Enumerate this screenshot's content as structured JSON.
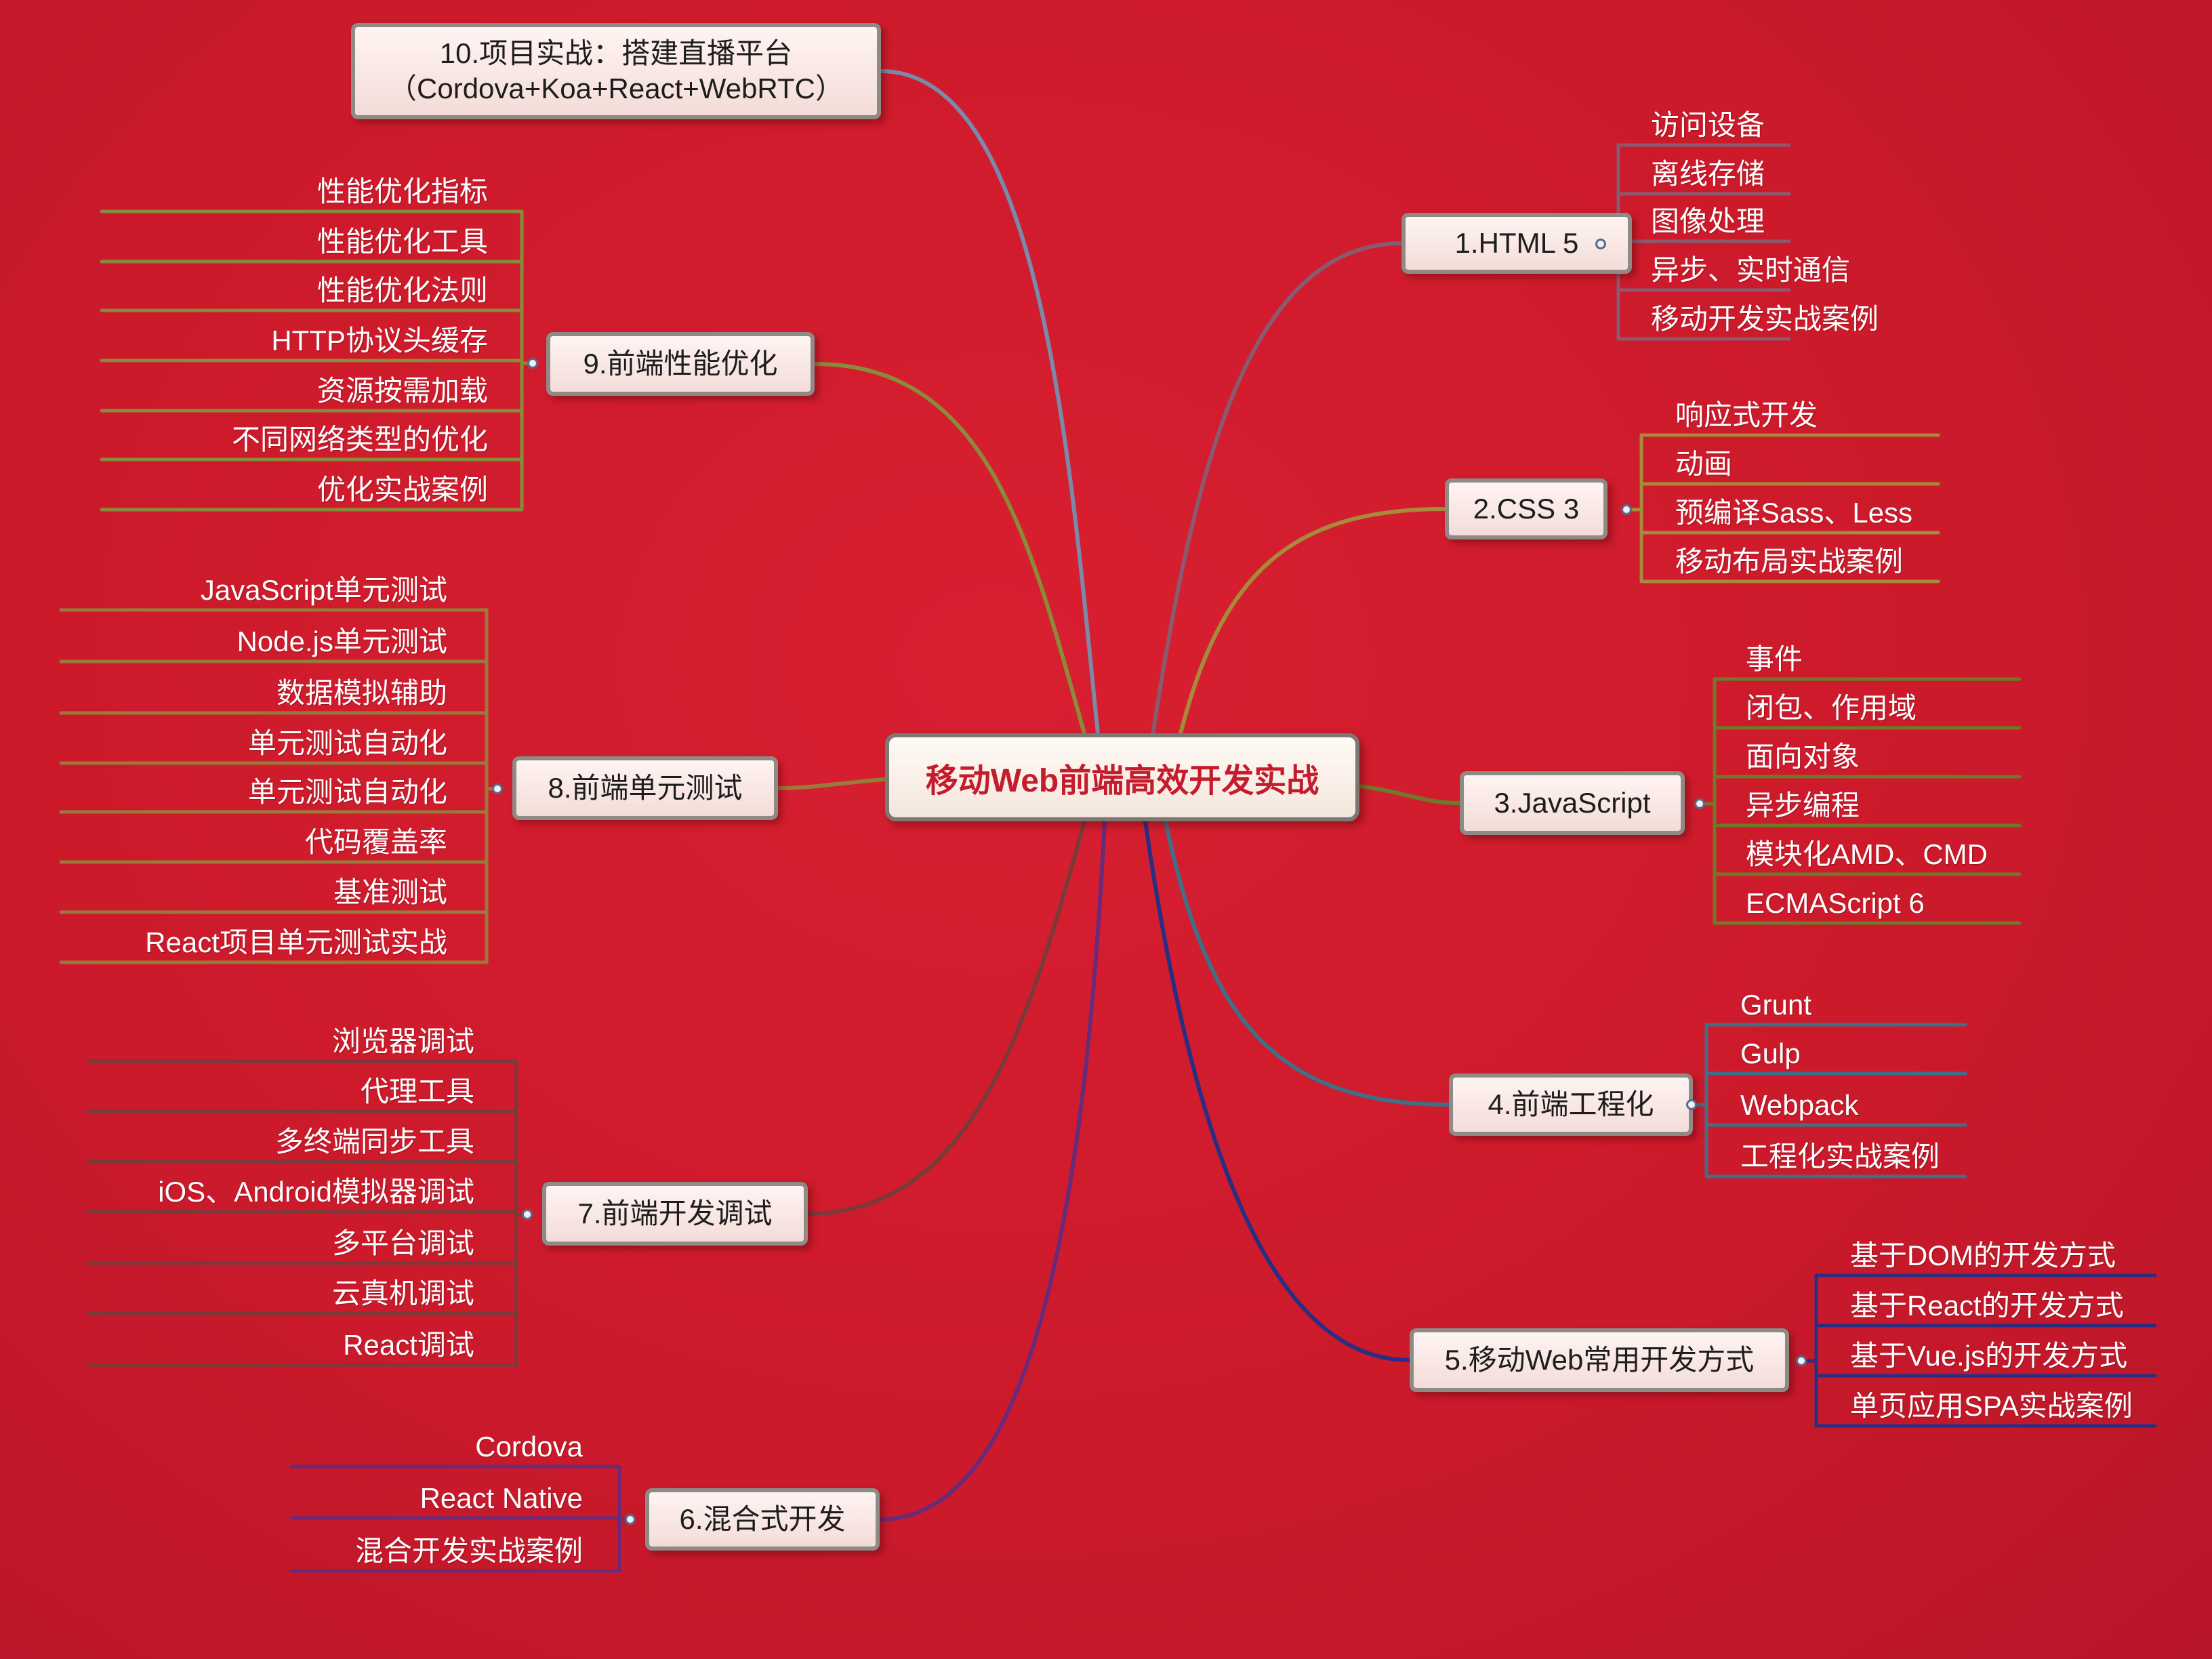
{
  "center": "移动Web前端高效开发实战",
  "branches": [
    {
      "id": "b1",
      "label": "1.HTML 5",
      "color": "#8a5a6e",
      "children": [
        "访问设备",
        "离线存储",
        "图像处理",
        "异步、实时通信",
        "移动开发实战案例"
      ]
    },
    {
      "id": "b2",
      "label": "2.CSS 3",
      "color": "#a88a3a",
      "children": [
        "响应式开发",
        "动画",
        "预编译Sass、Less",
        "移动布局实战案例"
      ]
    },
    {
      "id": "b3",
      "label": "3.JavaScript",
      "color": "#6e7a2a",
      "children": [
        "事件",
        "闭包、作用域",
        "面向对象",
        "异步编程",
        "模块化AMD、CMD",
        "ECMAScript 6"
      ]
    },
    {
      "id": "b4",
      "label": "4.前端工程化",
      "color": "#3e7088",
      "children": [
        "Grunt",
        "Gulp",
        "Webpack",
        "工程化实战案例"
      ]
    },
    {
      "id": "b5",
      "label": "5.移动Web常用开发方式",
      "color": "#2a2e82",
      "children": [
        "基于DOM的开发方式",
        "基于React的开发方式",
        "基于Vue.js的开发方式",
        "单页应用SPA实战案例"
      ]
    },
    {
      "id": "b6",
      "label": "6.混合式开发",
      "color": "#6a2a7a",
      "children": [
        "Cordova",
        "React Native",
        "混合开发实战案例"
      ]
    },
    {
      "id": "b7",
      "label": "7.前端开发调试",
      "color": "#7a3a3a",
      "children": [
        "浏览器调试",
        "代理工具",
        "多终端同步工具",
        "iOS、Android模拟器调试",
        "多平台调试",
        "云真机调试",
        "React调试"
      ]
    },
    {
      "id": "b8",
      "label": "8.前端单元测试",
      "color": "#9a7a3a",
      "children": [
        "JavaScript单元测试",
        "Node.js单元测试",
        "数据模拟辅助",
        "单元测试自动化",
        "单元测试自动化",
        "代码覆盖率",
        "基准测试",
        "React项目单元测试实战"
      ]
    },
    {
      "id": "b9",
      "label": "9.前端性能优化",
      "color": "#8a8a3a",
      "children": [
        "性能优化指标",
        "性能优化工具",
        "性能优化法则",
        "HTTP协议头缓存",
        "资源按需加载",
        "不同网络类型的优化",
        "优化实战案例"
      ]
    },
    {
      "id": "b10",
      "label_line1": "10.项目实战：搭建直播平台",
      "label_line2": "（Cordova+Koa+React+WebRTC）",
      "color": "#7a8aa8"
    }
  ]
}
